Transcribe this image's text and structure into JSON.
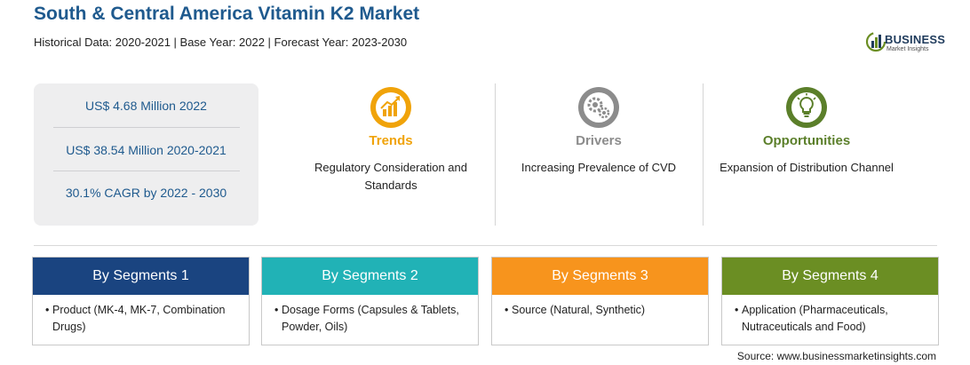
{
  "header": {
    "title": "South & Central America Vitamin K2 Market",
    "subtitle": "Historical Data: 2020-2021 | Base Year: 2022 | Forecast Year: 2023-2030"
  },
  "logo": {
    "word": "BUSINESS",
    "sub": "Market Insights"
  },
  "stats": [
    "US$ 4.68 Million 2022",
    "US$ 38.54 Million 2020-2021",
    "30.1% CAGR by 2022 - 2030"
  ],
  "columns": [
    {
      "heading": "Trends",
      "text": "Regulatory Consideration and Standards",
      "color": "#f0a30a",
      "icon": "trend-chart-icon"
    },
    {
      "heading": "Drivers",
      "text": "Increasing Prevalence of CVD",
      "color": "#8c8c8c",
      "icon": "gears-icon"
    },
    {
      "heading": "Opportunities",
      "text": "Expansion of Distribution Channel",
      "color": "#5b7f2a",
      "icon": "lightbulb-icon"
    }
  ],
  "segments": [
    {
      "title": "By Segments 1",
      "item": "Product (MK-4, MK-7, Combination Drugs)",
      "color": "#1a4480"
    },
    {
      "title": "By Segments 2",
      "item": "Dosage Forms (Capsules & Tablets, Powder, Oils)",
      "color": "#21b2b6"
    },
    {
      "title": "By Segments 3",
      "item": "Source (Natural, Synthetic)",
      "color": "#f7941d"
    },
    {
      "title": "By Segments 4",
      "item": "Application (Pharmaceuticals, Nutraceuticals and Food)",
      "color": "#6b8e23"
    }
  ],
  "source": "Source: www.businessmarketinsights.com",
  "bullet": "•"
}
